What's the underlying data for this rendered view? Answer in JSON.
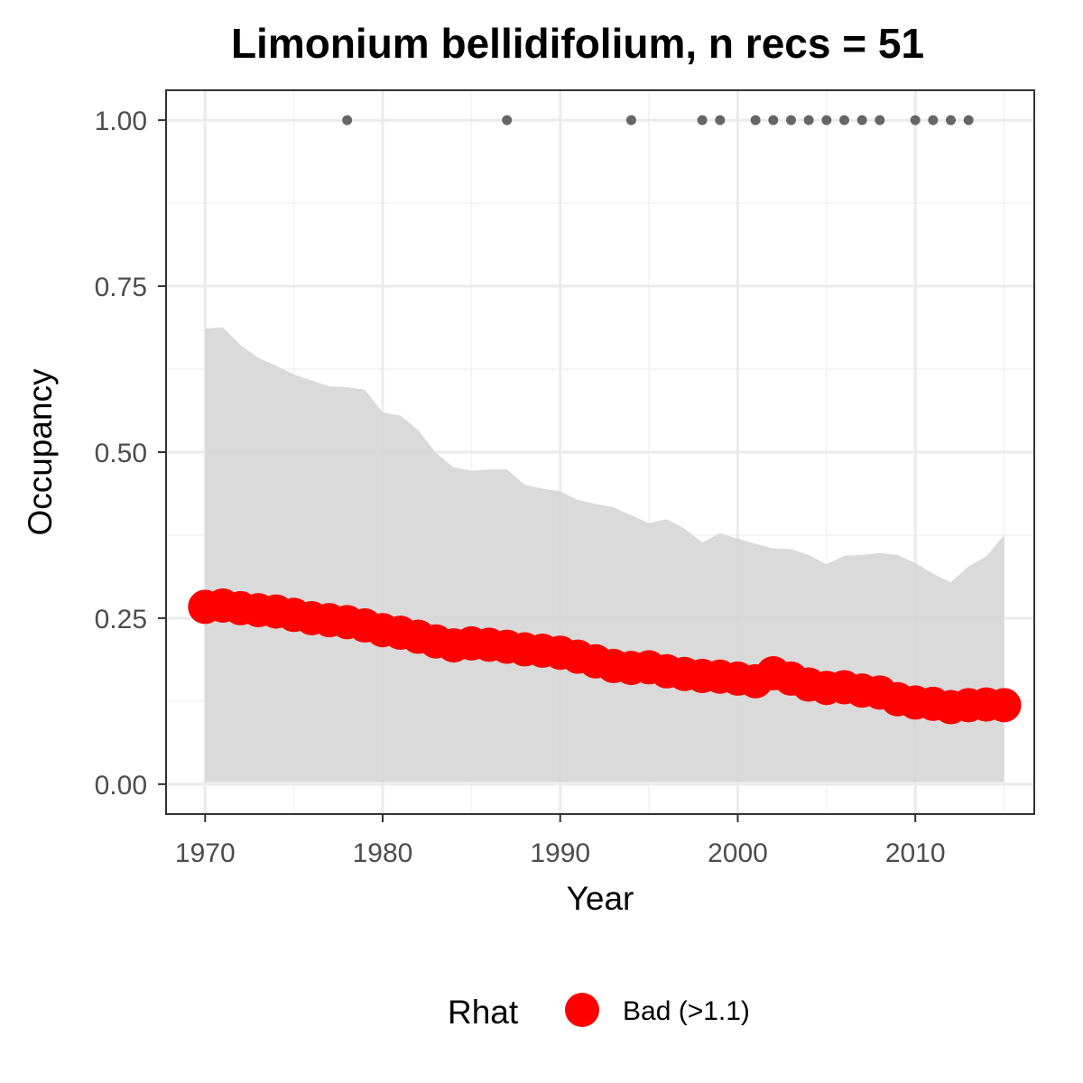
{
  "chart_data": {
    "type": "line",
    "title": "Limonium bellidifolium, n recs = 51",
    "xlabel": "Year",
    "ylabel": "Occupancy",
    "xlim": [
      1967.8,
      2016.7
    ],
    "ylim": [
      -0.045,
      1.045
    ],
    "x_ticks": [
      1970,
      1980,
      1990,
      2000,
      2010
    ],
    "x_tick_labels": [
      "1970",
      "1980",
      "1990",
      "2000",
      "2010"
    ],
    "y_ticks": [
      0,
      0.25,
      0.5,
      0.75,
      1.0
    ],
    "y_tick_labels": [
      "0.00",
      "0.25",
      "0.50",
      "0.75",
      "1.00"
    ],
    "grid": true,
    "x": [
      1970,
      1971,
      1972,
      1973,
      1974,
      1975,
      1976,
      1977,
      1978,
      1979,
      1980,
      1981,
      1982,
      1983,
      1984,
      1985,
      1986,
      1987,
      1988,
      1989,
      1990,
      1991,
      1992,
      1993,
      1994,
      1995,
      1996,
      1997,
      1998,
      1999,
      2000,
      2001,
      2002,
      2003,
      2004,
      2005,
      2006,
      2007,
      2008,
      2009,
      2010,
      2011,
      2012,
      2013,
      2014,
      2015
    ],
    "series": [
      {
        "name": "Occupancy",
        "color": "#ff0000",
        "values": [
          0.267,
          0.269,
          0.265,
          0.262,
          0.26,
          0.255,
          0.25,
          0.247,
          0.244,
          0.239,
          0.232,
          0.228,
          0.222,
          0.215,
          0.209,
          0.212,
          0.21,
          0.207,
          0.203,
          0.201,
          0.198,
          0.192,
          0.185,
          0.178,
          0.175,
          0.176,
          0.17,
          0.166,
          0.163,
          0.162,
          0.159,
          0.155,
          0.167,
          0.159,
          0.15,
          0.145,
          0.146,
          0.141,
          0.138,
          0.128,
          0.123,
          0.121,
          0.116,
          0.119,
          0.12,
          0.119
        ]
      }
    ],
    "ribbon": {
      "color": "#d6d6d6",
      "lower": [
        0.003,
        0.003,
        0.003,
        0.003,
        0.003,
        0.003,
        0.003,
        0.003,
        0.003,
        0.003,
        0.003,
        0.003,
        0.003,
        0.003,
        0.003,
        0.003,
        0.003,
        0.003,
        0.003,
        0.003,
        0.003,
        0.003,
        0.003,
        0.003,
        0.003,
        0.003,
        0.003,
        0.003,
        0.003,
        0.003,
        0.003,
        0.003,
        0.003,
        0.003,
        0.003,
        0.003,
        0.003,
        0.003,
        0.003,
        0.003,
        0.003,
        0.003,
        0.003,
        0.003,
        0.003,
        0.003
      ],
      "upper": [
        0.686,
        0.688,
        0.661,
        0.642,
        0.63,
        0.617,
        0.608,
        0.599,
        0.598,
        0.594,
        0.56,
        0.555,
        0.533,
        0.499,
        0.477,
        0.472,
        0.474,
        0.474,
        0.451,
        0.445,
        0.441,
        0.428,
        0.422,
        0.417,
        0.405,
        0.393,
        0.399,
        0.385,
        0.364,
        0.378,
        0.37,
        0.362,
        0.355,
        0.354,
        0.345,
        0.331,
        0.344,
        0.345,
        0.348,
        0.345,
        0.333,
        0.317,
        0.304,
        0.328,
        0.343,
        0.375
      ]
    },
    "records": {
      "color": "#666666",
      "x": [
        1978,
        1987,
        1994,
        1998,
        1999,
        2001,
        2002,
        2003,
        2004,
        2005,
        2006,
        2007,
        2008,
        2010,
        2011,
        2012,
        2013
      ],
      "y": 1.0
    },
    "legend": {
      "title": "Rhat",
      "position": "bottom",
      "entries": [
        {
          "label": "Bad (>1.1)",
          "color": "#ff0000"
        }
      ]
    }
  }
}
